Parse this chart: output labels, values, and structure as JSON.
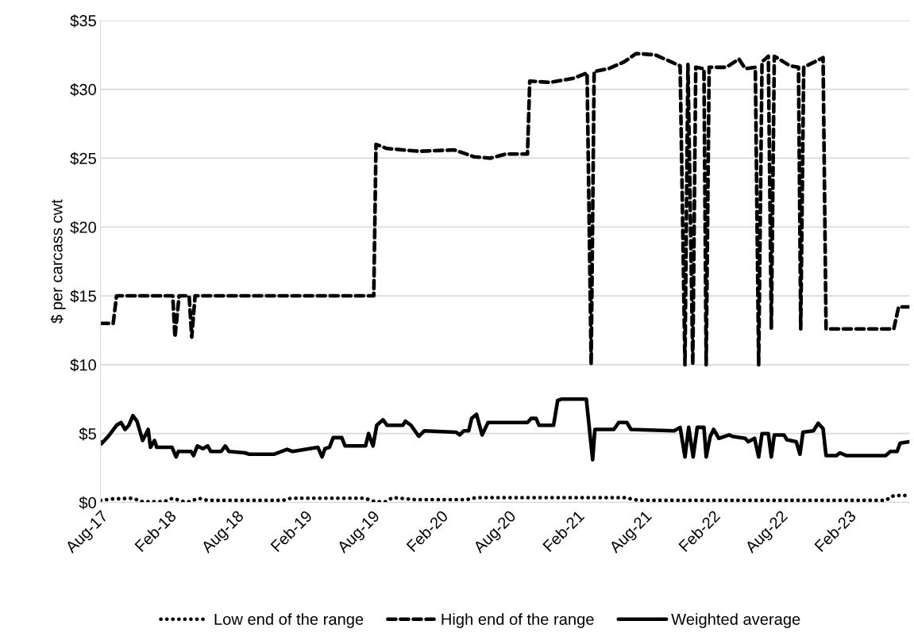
{
  "chart_data": {
    "type": "line",
    "ylabel": "$ per carcass cwt",
    "xlim": [
      "2017-08-01",
      "2023-07-14"
    ],
    "xticks": [
      {
        "value": "2017-08-01",
        "label": "Aug-17"
      },
      {
        "value": "2018-02-01",
        "label": "Feb-18"
      },
      {
        "value": "2018-08-01",
        "label": "Aug-18"
      },
      {
        "value": "2019-02-01",
        "label": "Feb-19"
      },
      {
        "value": "2019-08-01",
        "label": "Aug-19"
      },
      {
        "value": "2020-02-01",
        "label": "Feb-20"
      },
      {
        "value": "2020-08-01",
        "label": "Aug-20"
      },
      {
        "value": "2021-02-01",
        "label": "Feb-21"
      },
      {
        "value": "2021-08-01",
        "label": "Aug-21"
      },
      {
        "value": "2022-02-01",
        "label": "Feb-22"
      },
      {
        "value": "2022-08-01",
        "label": "Aug-22"
      },
      {
        "value": "2023-02-01",
        "label": "Feb-23"
      }
    ],
    "ylim": [
      0,
      35
    ],
    "yticks": [
      {
        "value": 0,
        "label": "$0"
      },
      {
        "value": 5,
        "label": "$5"
      },
      {
        "value": 10,
        "label": "$10"
      },
      {
        "value": 15,
        "label": "$15"
      },
      {
        "value": 20,
        "label": "$20"
      },
      {
        "value": 25,
        "label": "$25"
      },
      {
        "value": 30,
        "label": "$30"
      },
      {
        "value": 35,
        "label": "$35"
      }
    ],
    "grid": "y",
    "legend": "bottom",
    "marker": "none",
    "series": [
      {
        "name": "Low end of the range",
        "color": "#000000",
        "line_style": "dotted",
        "x": [
          "2017-08-01",
          "2017-08-31",
          "2017-10-27",
          "2017-11-22",
          "2018-01-18",
          "2018-02-11",
          "2018-03-13",
          "2018-03-27",
          "2018-04-21",
          "2018-05-16",
          "2018-12-04",
          "2018-12-25",
          "2019-07-12",
          "2019-08-09",
          "2019-09-05",
          "2019-09-25",
          "2019-11-24",
          "2020-04-10",
          "2020-05-07",
          "2021-06-08",
          "2021-07-16",
          "2021-08-11",
          "2023-05-11",
          "2023-06-02",
          "2023-07-14"
        ],
        "values": [
          0.15,
          0.25,
          0.3,
          0.05,
          0.05,
          0.3,
          0.05,
          0.05,
          0.3,
          0.15,
          0.15,
          0.3,
          0.3,
          0.05,
          0.05,
          0.35,
          0.2,
          0.2,
          0.35,
          0.35,
          0.15,
          0.15,
          0.15,
          0.5,
          0.5
        ]
      },
      {
        "name": "High end of the range",
        "color": "#000000",
        "line_style": "dashed",
        "x": [
          "2017-08-01",
          "2017-09-04",
          "2017-09-13",
          "2018-02-11",
          "2018-02-17",
          "2018-02-28",
          "2018-03-27",
          "2018-04-03",
          "2018-04-12",
          "2019-08-05",
          "2019-08-11",
          "2019-09-10",
          "2019-12-04",
          "2020-03-08",
          "2020-05-01",
          "2020-06-13",
          "2020-07-25",
          "2020-09-21",
          "2020-09-27",
          "2020-11-20",
          "2021-01-22",
          "2021-02-28",
          "2021-03-11",
          "2021-03-19",
          "2021-04-27",
          "2021-06-08",
          "2021-07-10",
          "2021-08-30",
          "2021-10-03",
          "2021-11-05",
          "2021-11-18",
          "2021-11-26",
          "2021-12-09",
          "2021-12-17",
          "2022-01-08",
          "2022-01-14",
          "2022-01-22",
          "2022-03-09",
          "2022-04-12",
          "2022-04-29",
          "2022-05-26",
          "2022-06-04",
          "2022-06-13",
          "2022-06-30",
          "2022-07-08",
          "2022-07-16",
          "2022-08-28",
          "2022-09-19",
          "2022-09-25",
          "2022-10-03",
          "2022-11-24",
          "2022-12-02",
          "2023-06-02",
          "2023-06-15",
          "2023-07-14"
        ],
        "values": [
          13,
          13,
          15,
          15,
          12,
          15,
          15,
          12,
          15,
          15,
          26,
          25.7,
          25.5,
          25.6,
          25.1,
          25.0,
          25.3,
          25.3,
          30.6,
          30.5,
          30.8,
          31.2,
          10,
          31.3,
          31.5,
          32.0,
          32.6,
          32.5,
          32.1,
          31.7,
          10,
          31.8,
          10,
          31.6,
          31.5,
          10,
          31.6,
          31.6,
          32.2,
          31.5,
          31.6,
          10,
          32.0,
          32.4,
          12.6,
          32.4,
          31.7,
          31.6,
          12.6,
          31.6,
          32.3,
          12.6,
          12.6,
          14.2,
          14.2
        ]
      },
      {
        "name": "Weighted average",
        "color": "#000000",
        "line_style": "solid",
        "x": [
          "2017-08-01",
          "2017-08-03",
          "2017-08-22",
          "2017-09-13",
          "2017-09-25",
          "2017-10-06",
          "2017-10-16",
          "2017-10-27",
          "2017-11-07",
          "2017-11-22",
          "2017-12-07",
          "2017-12-13",
          "2017-12-24",
          "2017-12-30",
          "2018-02-09",
          "2018-02-20",
          "2018-02-26",
          "2018-04-01",
          "2018-04-08",
          "2018-04-18",
          "2018-05-03",
          "2018-05-16",
          "2018-05-24",
          "2018-06-21",
          "2018-07-02",
          "2018-07-12",
          "2018-08-24",
          "2018-09-04",
          "2018-11-11",
          "2018-12-15",
          "2018-12-30",
          "2019-03-08",
          "2019-03-19",
          "2019-03-27",
          "2019-04-08",
          "2019-04-18",
          "2019-05-11",
          "2019-05-20",
          "2019-07-14",
          "2019-07-22",
          "2019-08-03",
          "2019-08-13",
          "2019-08-30",
          "2019-09-10",
          "2019-10-22",
          "2019-10-29",
          "2019-11-13",
          "2019-12-04",
          "2019-12-19",
          "2020-03-13",
          "2020-03-23",
          "2020-04-03",
          "2020-04-16",
          "2020-04-24",
          "2020-05-07",
          "2020-05-22",
          "2020-06-07",
          "2020-09-21",
          "2020-10-01",
          "2020-10-14",
          "2020-10-22",
          "2020-11-30",
          "2020-12-11",
          "2020-12-21",
          "2021-02-26",
          "2021-03-15",
          "2021-03-21",
          "2021-05-11",
          "2021-05-24",
          "2021-06-15",
          "2021-06-26",
          "2021-10-20",
          "2021-11-05",
          "2021-11-18",
          "2021-11-28",
          "2021-12-10",
          "2021-12-21",
          "2022-01-08",
          "2022-01-14",
          "2022-01-25",
          "2022-02-03",
          "2022-02-17",
          "2022-03-17",
          "2022-03-25",
          "2022-04-29",
          "2022-05-07",
          "2022-05-24",
          "2022-06-04",
          "2022-06-13",
          "2022-06-30",
          "2022-07-08",
          "2022-07-16",
          "2022-08-11",
          "2022-08-19",
          "2022-09-13",
          "2022-09-23",
          "2022-10-01",
          "2022-10-29",
          "2022-11-11",
          "2022-11-24",
          "2022-12-02",
          "2022-12-30",
          "2023-01-08",
          "2023-01-25",
          "2023-05-11",
          "2023-05-24",
          "2023-06-11",
          "2023-06-19",
          "2023-07-14"
        ],
        "values": [
          4.4,
          4.25,
          4.8,
          5.6,
          5.8,
          5.3,
          5.6,
          6.3,
          5.9,
          4.5,
          5.3,
          4.0,
          4.5,
          4.0,
          4.0,
          3.3,
          3.7,
          3.7,
          3.4,
          4.1,
          3.9,
          4.1,
          3.7,
          3.7,
          4.1,
          3.7,
          3.6,
          3.5,
          3.5,
          3.85,
          3.7,
          4.0,
          3.3,
          3.9,
          4.0,
          4.7,
          4.7,
          4.1,
          4.1,
          5.0,
          4.1,
          5.6,
          6.0,
          5.6,
          5.6,
          5.9,
          5.6,
          4.8,
          5.2,
          5.1,
          4.9,
          5.2,
          5.2,
          6.1,
          6.4,
          4.9,
          5.8,
          5.8,
          6.1,
          6.1,
          5.6,
          5.6,
          7.4,
          7.5,
          7.5,
          3.1,
          5.3,
          5.3,
          5.8,
          5.8,
          5.3,
          5.2,
          5.45,
          3.3,
          5.45,
          3.3,
          5.45,
          5.45,
          3.3,
          4.8,
          5.3,
          4.65,
          4.9,
          4.8,
          4.65,
          4.4,
          4.65,
          3.3,
          5.0,
          5.0,
          3.3,
          4.9,
          4.9,
          4.55,
          4.4,
          3.5,
          5.1,
          5.2,
          5.75,
          5.35,
          3.4,
          3.4,
          3.6,
          3.4,
          3.4,
          3.7,
          3.7,
          4.3,
          4.4
        ]
      }
    ]
  }
}
